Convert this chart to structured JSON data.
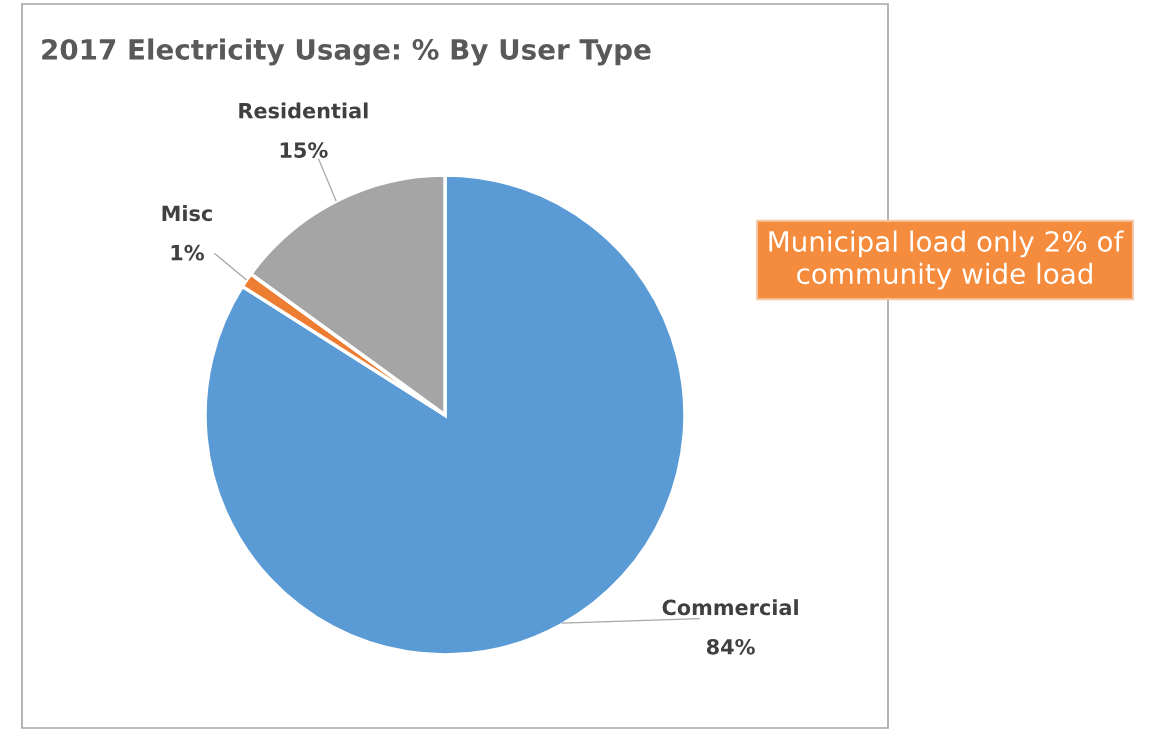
{
  "chart_data": {
    "type": "pie",
    "title": "2017 Electricity Usage: % By User Type",
    "categories": [
      "Commercial",
      "Misc",
      "Residential"
    ],
    "values": [
      84,
      1,
      15
    ],
    "colors": [
      "#5b9bd5",
      "#ed7d31",
      "#a5a5a5"
    ],
    "value_labels": [
      "84%",
      "1%",
      "15%"
    ],
    "legend": false,
    "annotations": [
      "Municipal load only 2% of community wide load"
    ]
  }
}
